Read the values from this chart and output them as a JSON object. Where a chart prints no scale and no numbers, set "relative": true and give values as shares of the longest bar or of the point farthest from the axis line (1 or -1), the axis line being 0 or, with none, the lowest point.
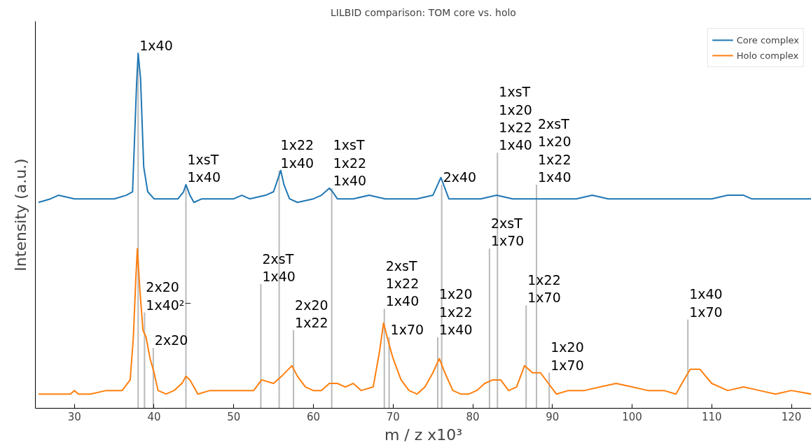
{
  "chart_data": {
    "type": "line",
    "title": "LILBID comparison: TOM core vs. holo",
    "xlabel": "m / z x10³",
    "ylabel": "Intensity (a.u.)",
    "relative": true,
    "xlim": [
      25.1,
      122.5
    ],
    "xticks": [
      30,
      40,
      50,
      60,
      70,
      80,
      90,
      100,
      110,
      120
    ],
    "grid": false,
    "legend": "top right",
    "series": [
      {
        "type": "bar",
        "color": "#bbbbbb",
        "x": [
          38.0,
          38.8,
          39.9,
          44.0,
          53.4,
          55.7,
          57.5,
          62.3,
          68.9,
          69.5,
          75.6,
          76.1,
          82.1,
          83.1,
          86.7,
          88.0,
          89.6,
          107.0
        ],
        "values": [
          1.0,
          0.27,
          0.17,
          0.63,
          0.35,
          0.67,
          0.22,
          0.62,
          0.28,
          0.2,
          0.2,
          0.63,
          0.45,
          0.72,
          0.29,
          0.63,
          0.1,
          0.25
        ]
      },
      {
        "name": "Core complex",
        "color": "#1f77b4",
        "x": [
          25.5,
          27,
          28,
          30,
          31,
          33,
          35,
          36.5,
          37.3,
          37.8,
          38,
          38.3,
          38.7,
          39.2,
          40,
          41,
          42,
          43,
          43.7,
          44,
          44.5,
          45,
          46,
          48,
          50,
          51,
          52,
          54,
          55,
          55.6,
          55.9,
          56.3,
          57,
          58,
          60,
          61,
          62,
          62.4,
          63,
          65,
          67,
          69,
          71,
          73,
          75,
          75.6,
          76,
          76.5,
          77,
          79,
          81,
          83,
          85,
          87,
          89,
          91,
          93,
          95,
          97,
          99,
          101,
          103,
          105,
          107,
          110,
          112,
          114,
          115,
          117,
          119,
          121,
          122.5
        ],
        "values": [
          0.58,
          0.59,
          0.6,
          0.59,
          0.59,
          0.59,
          0.59,
          0.6,
          0.61,
          0.91,
          1.0,
          0.93,
          0.68,
          0.61,
          0.59,
          0.59,
          0.59,
          0.59,
          0.61,
          0.63,
          0.6,
          0.58,
          0.59,
          0.59,
          0.59,
          0.6,
          0.59,
          0.6,
          0.61,
          0.65,
          0.67,
          0.63,
          0.59,
          0.58,
          0.59,
          0.6,
          0.62,
          0.61,
          0.59,
          0.59,
          0.6,
          0.59,
          0.59,
          0.59,
          0.6,
          0.63,
          0.65,
          0.62,
          0.59,
          0.59,
          0.59,
          0.6,
          0.59,
          0.59,
          0.59,
          0.59,
          0.59,
          0.6,
          0.59,
          0.59,
          0.59,
          0.59,
          0.59,
          0.59,
          0.59,
          0.6,
          0.6,
          0.59,
          0.59,
          0.59,
          0.59,
          0.59
        ]
      },
      {
        "name": "Holo complex",
        "color": "#ff7f0e",
        "x": [
          25.5,
          28,
          29.5,
          30,
          30.5,
          32,
          34,
          36,
          37,
          37.4,
          37.7,
          37.9,
          38.2,
          38.6,
          39,
          39.5,
          40,
          40.5,
          41.5,
          42.5,
          43.5,
          44,
          44.5,
          45.5,
          47,
          49,
          51,
          52.5,
          53.5,
          55,
          56,
          57.3,
          58,
          59,
          60,
          61,
          62,
          63,
          64,
          65,
          66,
          67.5,
          68.3,
          68.8,
          69.5,
          70,
          71,
          72,
          73,
          74,
          75,
          75.8,
          76.5,
          77.5,
          78.5,
          79.5,
          80.5,
          81.5,
          82.5,
          83.5,
          84.5,
          85.5,
          86.5,
          87.5,
          88.5,
          89.5,
          90.5,
          92,
          94,
          96,
          98,
          100,
          102,
          104,
          105.5,
          106.5,
          107.3,
          108.5,
          110,
          112,
          114,
          116,
          118,
          120,
          122.5
        ],
        "values": [
          0.04,
          0.04,
          0.04,
          0.05,
          0.04,
          0.04,
          0.05,
          0.05,
          0.08,
          0.2,
          0.36,
          0.45,
          0.34,
          0.22,
          0.2,
          0.14,
          0.1,
          0.05,
          0.04,
          0.05,
          0.07,
          0.09,
          0.08,
          0.04,
          0.05,
          0.05,
          0.05,
          0.05,
          0.08,
          0.07,
          0.09,
          0.12,
          0.09,
          0.06,
          0.05,
          0.05,
          0.07,
          0.07,
          0.06,
          0.07,
          0.05,
          0.06,
          0.16,
          0.24,
          0.18,
          0.14,
          0.08,
          0.05,
          0.04,
          0.06,
          0.1,
          0.14,
          0.1,
          0.05,
          0.04,
          0.04,
          0.05,
          0.07,
          0.08,
          0.08,
          0.05,
          0.06,
          0.12,
          0.1,
          0.1,
          0.07,
          0.04,
          0.05,
          0.05,
          0.06,
          0.07,
          0.06,
          0.05,
          0.05,
          0.04,
          0.08,
          0.11,
          0.11,
          0.07,
          0.05,
          0.06,
          0.05,
          0.04,
          0.05,
          0.04
        ]
      }
    ],
    "annotations": [
      {
        "text": "1x40",
        "x": 38.0,
        "y": 1.0
      },
      {
        "text": "1xsT\n1x40",
        "x": 44.0,
        "y": 0.63
      },
      {
        "text": "1x22\n1x40",
        "x": 55.7,
        "y": 0.67
      },
      {
        "text": "1xsT\n1x22\n1x40",
        "x": 62.3,
        "y": 0.62
      },
      {
        "text": "2x40",
        "x": 76.1,
        "y": 0.63
      },
      {
        "text": "1xsT\n1x20\n1x22\n1x40",
        "x": 83.1,
        "y": 0.72
      },
      {
        "text": "2xsT\n1x20\n1x22\n1x40",
        "x": 88.0,
        "y": 0.63
      },
      {
        "text": "2x20\n1x40²⁻",
        "x": 38.8,
        "y": 0.27
      },
      {
        "text": "2x20",
        "x": 39.9,
        "y": 0.17
      },
      {
        "text": "2xsT\n1x40",
        "x": 53.4,
        "y": 0.35
      },
      {
        "text": "2x20\n1x22",
        "x": 57.5,
        "y": 0.22
      },
      {
        "text": "2xsT\n1x22\n1x40",
        "x": 68.9,
        "y": 0.28
      },
      {
        "text": "1x70",
        "x": 69.5,
        "y": 0.2
      },
      {
        "text": "1x20\n1x22\n1x40",
        "x": 75.6,
        "y": 0.2
      },
      {
        "text": "2xsT\n1x70",
        "x": 82.1,
        "y": 0.45
      },
      {
        "text": "1x22\n1x70",
        "x": 86.7,
        "y": 0.29
      },
      {
        "text": "1x20\n1x70",
        "x": 89.6,
        "y": 0.1
      },
      {
        "text": "1x40\n1x70",
        "x": 107.0,
        "y": 0.25
      }
    ]
  }
}
